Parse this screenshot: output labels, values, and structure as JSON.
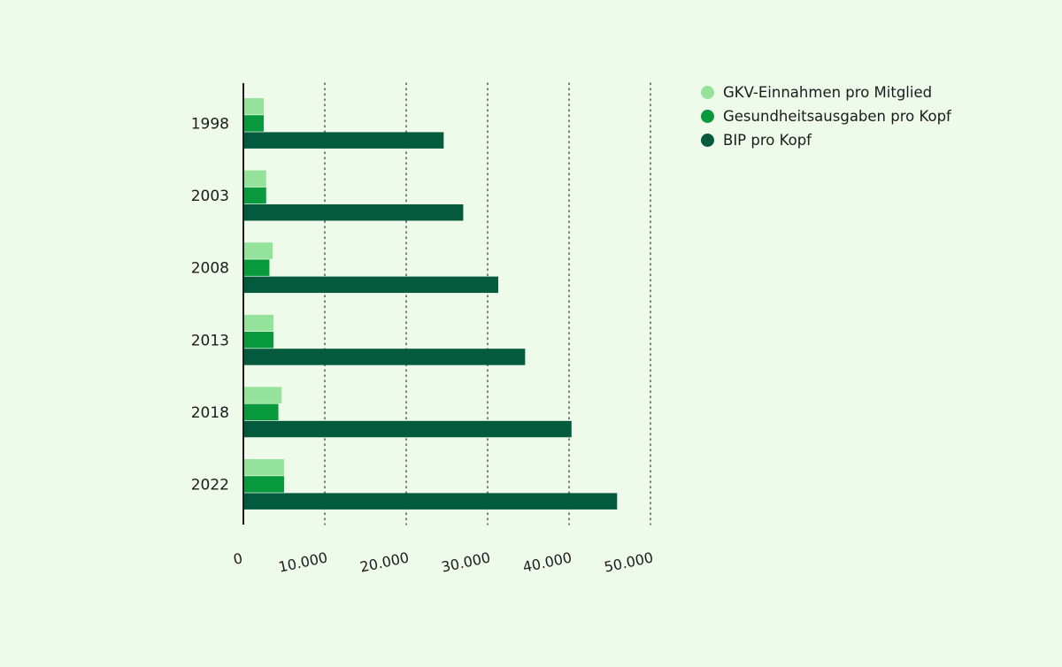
{
  "chart_data": {
    "type": "bar",
    "orientation": "horizontal",
    "categories": [
      "1998",
      "2003",
      "2008",
      "2013",
      "2018",
      "2022"
    ],
    "series": [
      {
        "name": "GKV-Einnahmen pro Mitglied",
        "color": "#95e39a",
        "values": [
          2500,
          2800,
          3600,
          3700,
          4700,
          5000
        ]
      },
      {
        "name": "Gesundheitsausgaben pro Kopf",
        "color": "#0a9a3e",
        "values": [
          2500,
          2800,
          3200,
          3700,
          4300,
          5000
        ]
      },
      {
        "name": "BIP pro Kopf",
        "color": "#035a3c",
        "values": [
          24600,
          27000,
          31300,
          34600,
          40300,
          45900
        ]
      }
    ],
    "x_ticks": [
      0,
      10000,
      20000,
      30000,
      40000,
      50000
    ],
    "x_tick_labels": [
      "0",
      "10.000",
      "20.000",
      "30.000",
      "40.000",
      "50.000"
    ],
    "xlim": [
      0,
      50000
    ],
    "grid": "dotted vertical",
    "legend_position": "top-right",
    "title": "",
    "xlabel": "",
    "ylabel": ""
  }
}
